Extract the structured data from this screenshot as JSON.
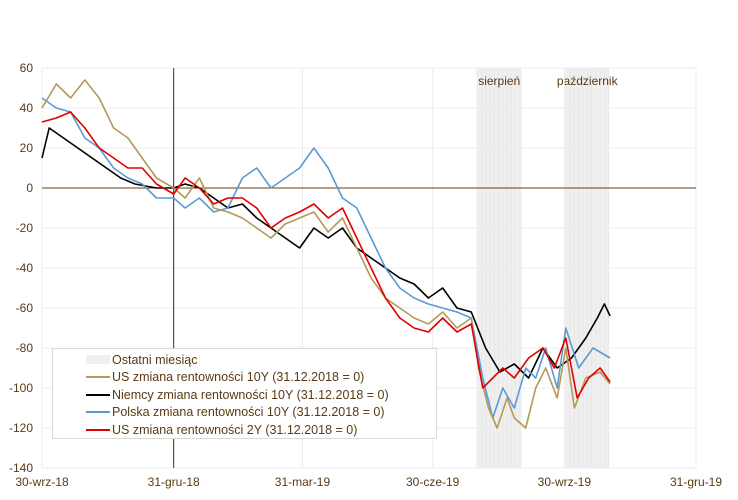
{
  "chart_data": {
    "type": "line",
    "title": "",
    "xlabel": "",
    "ylabel": "",
    "ylim": [
      -140,
      60
    ],
    "yticks": [
      60,
      40,
      20,
      0,
      -20,
      -40,
      -60,
      -80,
      -100,
      -120,
      -140
    ],
    "x_unit": "days since 30-wrz-18",
    "xlim": [
      0,
      457
    ],
    "xticks": [
      {
        "day": 0,
        "label": "30-wrz-18"
      },
      {
        "day": 92,
        "label": "31-gru-18"
      },
      {
        "day": 182,
        "label": "31-mar-19"
      },
      {
        "day": 273,
        "label": "30-cze-19"
      },
      {
        "day": 365,
        "label": "30-wrz-19"
      },
      {
        "day": 457,
        "label": "31-gru-19"
      }
    ],
    "grid": true,
    "reference_vertical_day": 92,
    "reference_horizontal_value": 0,
    "bands": [
      {
        "label": "sierpień",
        "start": 304,
        "end": 335
      },
      {
        "label": "październik",
        "start": 366,
        "end": 396
      }
    ],
    "legend_position": "bottom-left",
    "legend_band_label": "Ostatni miesiąc",
    "band_color": "#efefef",
    "series": [
      {
        "name": "US zmiana rentowności 10Y (31.12.2018 = 0)",
        "color": "#b5985a",
        "x": [
          0,
          10,
          20,
          30,
          40,
          50,
          60,
          70,
          80,
          92,
          100,
          110,
          120,
          130,
          140,
          150,
          160,
          170,
          180,
          190,
          200,
          210,
          220,
          230,
          240,
          250,
          260,
          270,
          280,
          290,
          300,
          305,
          312,
          318,
          325,
          330,
          338,
          345,
          352,
          360,
          366,
          372,
          380,
          390,
          397
        ],
        "values": [
          40,
          52,
          45,
          54,
          45,
          30,
          25,
          15,
          5,
          0,
          -5,
          5,
          -10,
          -12,
          -15,
          -20,
          -25,
          -18,
          -15,
          -12,
          -22,
          -15,
          -30,
          -45,
          -55,
          -60,
          -65,
          -68,
          -62,
          -70,
          -65,
          -90,
          -110,
          -120,
          -105,
          -115,
          -120,
          -100,
          -90,
          -105,
          -80,
          -110,
          -95,
          -92,
          -98
        ]
      },
      {
        "name": "Niemcy zmiana rentowności 10Y (31.12.2018 = 0)",
        "color": "#000000",
        "x": [
          0,
          5,
          15,
          25,
          35,
          45,
          55,
          65,
          80,
          92,
          100,
          110,
          120,
          130,
          140,
          150,
          160,
          170,
          180,
          190,
          200,
          210,
          220,
          230,
          240,
          250,
          260,
          270,
          280,
          290,
          300,
          310,
          320,
          330,
          340,
          350,
          360,
          370,
          380,
          388,
          393,
          397
        ],
        "values": [
          15,
          30,
          25,
          20,
          15,
          10,
          5,
          2,
          0,
          0,
          2,
          0,
          -5,
          -10,
          -8,
          -15,
          -20,
          -25,
          -30,
          -20,
          -25,
          -20,
          -30,
          -35,
          -40,
          -45,
          -48,
          -55,
          -50,
          -60,
          -62,
          -80,
          -92,
          -88,
          -95,
          -80,
          -90,
          -85,
          -75,
          -65,
          -58,
          -64
        ]
      },
      {
        "name": "Polska zmiana rentowności 10Y (31.12.2018 = 0)",
        "color": "#5b9bd5",
        "x": [
          0,
          10,
          20,
          30,
          40,
          50,
          60,
          70,
          80,
          92,
          100,
          110,
          120,
          130,
          140,
          150,
          160,
          170,
          180,
          190,
          200,
          210,
          220,
          230,
          240,
          250,
          260,
          270,
          280,
          290,
          300,
          308,
          315,
          322,
          330,
          338,
          345,
          352,
          360,
          366,
          375,
          385,
          397
        ],
        "values": [
          45,
          40,
          38,
          25,
          20,
          10,
          5,
          2,
          -5,
          -5,
          -10,
          -5,
          -12,
          -10,
          5,
          10,
          0,
          5,
          10,
          20,
          10,
          -5,
          -10,
          -25,
          -40,
          -50,
          -55,
          -58,
          -60,
          -62,
          -65,
          -95,
          -115,
          -100,
          -110,
          -90,
          -95,
          -80,
          -100,
          -70,
          -90,
          -80,
          -85
        ]
      },
      {
        "name": "US zmiana rentowności 2Y (31.12.2018 = 0)",
        "color": "#e00000",
        "x": [
          0,
          10,
          20,
          30,
          40,
          50,
          60,
          70,
          80,
          92,
          100,
          110,
          120,
          130,
          140,
          150,
          160,
          170,
          180,
          190,
          200,
          210,
          220,
          230,
          240,
          250,
          260,
          270,
          280,
          290,
          300,
          308,
          315,
          322,
          330,
          340,
          350,
          358,
          366,
          374,
          382,
          390,
          397
        ],
        "values": [
          33,
          35,
          38,
          30,
          20,
          15,
          10,
          10,
          2,
          -3,
          5,
          0,
          -8,
          -5,
          -5,
          -10,
          -20,
          -15,
          -12,
          -8,
          -15,
          -10,
          -25,
          -40,
          -55,
          -65,
          -70,
          -72,
          -65,
          -72,
          -68,
          -100,
          -95,
          -90,
          -95,
          -85,
          -80,
          -90,
          -75,
          -105,
          -95,
          -90,
          -97
        ]
      }
    ]
  }
}
